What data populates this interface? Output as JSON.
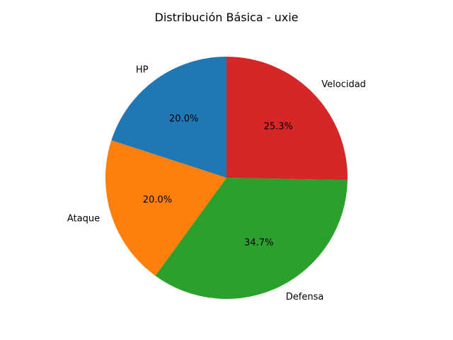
{
  "chart_data": {
    "type": "pie",
    "title": "Distribución Básica - uxie",
    "start_angle_deg": 90,
    "direction": "counterclockwise",
    "slices": [
      {
        "label": "HP",
        "value": 20.0,
        "pct_label": "20.0%",
        "color": "#1f77b4"
      },
      {
        "label": "Ataque",
        "value": 20.0,
        "pct_label": "20.0%",
        "color": "#ff7f0e"
      },
      {
        "label": "Defensa",
        "value": 34.7,
        "pct_label": "34.7%",
        "color": "#2ca02c"
      },
      {
        "label": "Velocidad",
        "value": 25.3,
        "pct_label": "25.3%",
        "color": "#d62728"
      }
    ]
  }
}
